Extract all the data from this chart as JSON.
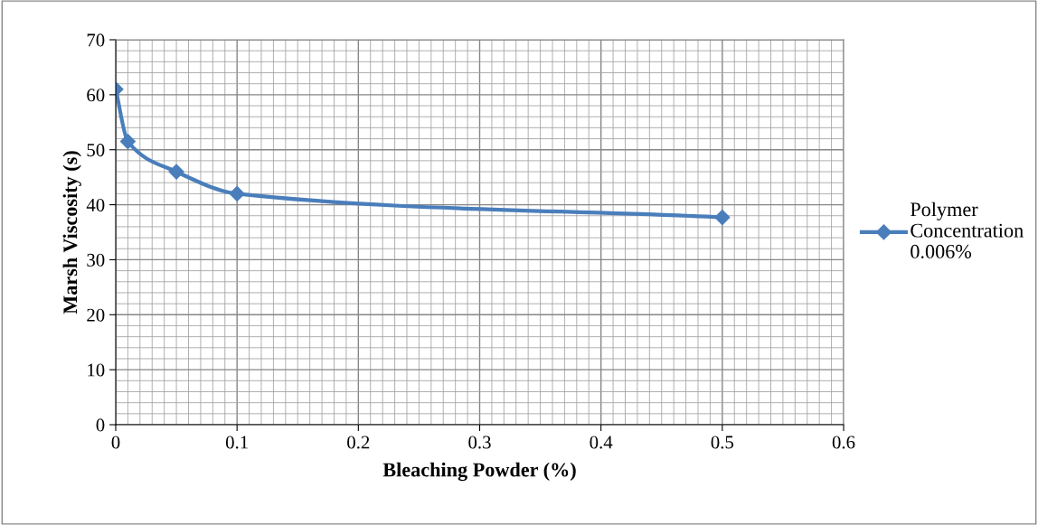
{
  "chart_data": {
    "type": "line",
    "xlabel": "Bleaching Powder (%)",
    "ylabel": "Marsh Viscosity (s)",
    "x": [
      0,
      0.01,
      0.05,
      0.1,
      0.5
    ],
    "series": [
      {
        "name": "Polymer Concentration 0.006%",
        "color": "#4a7ebb",
        "values": [
          61,
          51.5,
          46,
          42,
          37.7
        ]
      }
    ],
    "xlim": [
      0,
      0.6
    ],
    "xticks": [
      0,
      0.1,
      0.2,
      0.3,
      0.4,
      0.5,
      0.6
    ],
    "ylim": [
      0,
      70
    ],
    "yticks": [
      0,
      10,
      20,
      30,
      40,
      50,
      60,
      70
    ],
    "grid": true,
    "legend": "right",
    "marker": "diamond",
    "line_style": "solid"
  }
}
